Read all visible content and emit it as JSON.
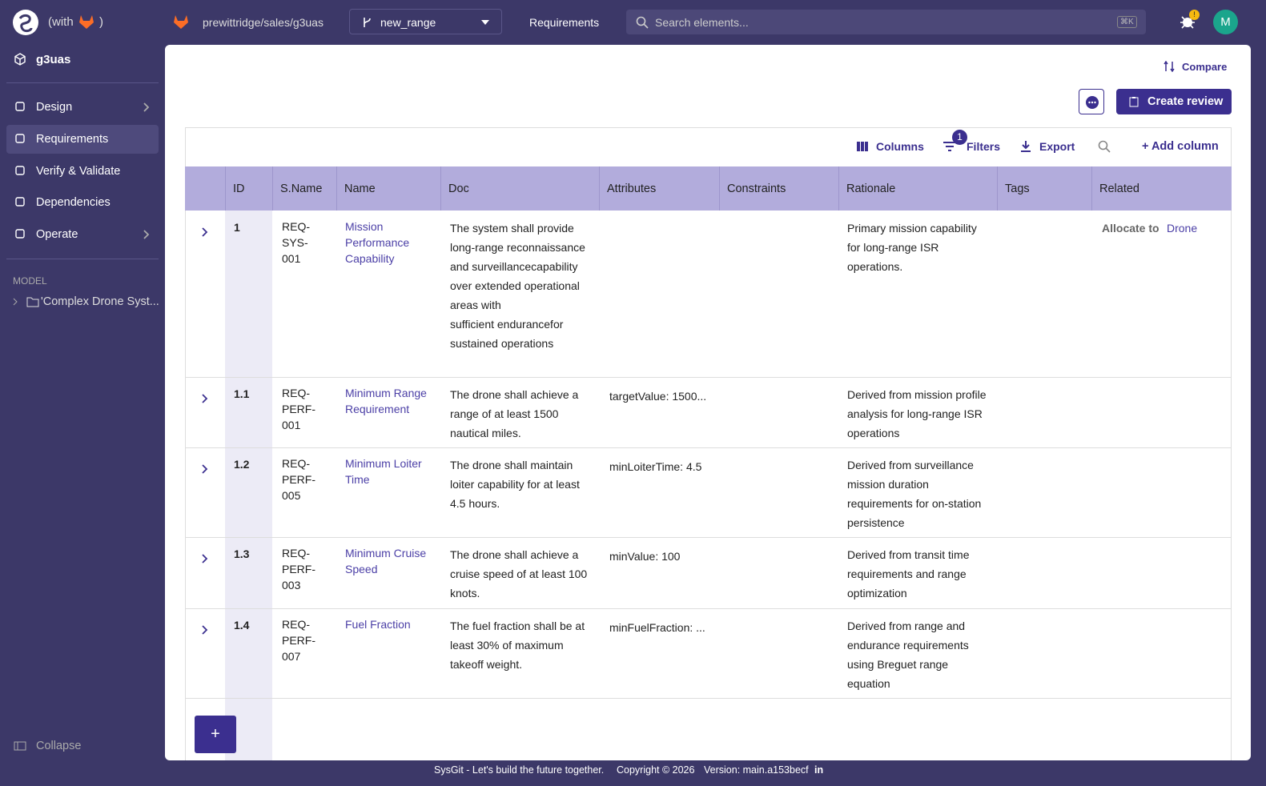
{
  "header": {
    "with_open": "(with",
    "with_close": ")",
    "repo": "prewittridge/sales/g3uas",
    "branch": "new_range",
    "page": "Requirements",
    "search_placeholder": "Search elements...",
    "shortcut": "⌘K",
    "badge": "!",
    "avatar": "M"
  },
  "sidebar": {
    "project": "g3uas",
    "nav": [
      "Design",
      "Requirements",
      "Verify & Validate",
      "Dependencies",
      "Operate"
    ],
    "model_heading": "MODEL",
    "model_item": "'Complex Drone Syst...",
    "collapse": "Collapse"
  },
  "toolbar": {
    "compare": "Compare",
    "create_review": "Create review",
    "columns": "Columns",
    "filter_count": "1",
    "filters": "Filters",
    "export": "Export",
    "add_column": "+ Add column",
    "add_row": "+"
  },
  "table": {
    "headers": [
      "ID",
      "S.Name",
      "Name",
      "Doc",
      "Attributes",
      "Constraints",
      "Rationale",
      "Tags",
      "Related"
    ],
    "rows": [
      {
        "id": "1",
        "sname": "REQ-\nSYS-\n001",
        "name": "Mission Performance Capability",
        "doc": "The system shall provide long-range reconnaissance and surveillancecapability over extended operational areas with\nsufficient endurancefor sustained operations",
        "rationale": "Primary mission capability for long-range ISR operations.",
        "related_label": "Allocate to",
        "related_target": "Drone"
      },
      {
        "id": "1.1",
        "sname": "REQ-\nPERF-\n001",
        "name": "Minimum Range Requirement",
        "doc": "The drone shall achieve a range of at least 1500 nautical miles.",
        "attributes": "targetValue: 1500...",
        "rationale": "Derived from mission profile analysis for long-range ISR operations"
      },
      {
        "id": "1.2",
        "sname": "REQ-\nPERF-\n005",
        "name": "Minimum Loiter Time",
        "doc": "The drone shall maintain loiter capability for at least 4.5 hours.",
        "attributes": "minLoiterTime: 4.5",
        "rationale": "Derived from surveillance mission duration requirements for on-station persistence"
      },
      {
        "id": "1.3",
        "sname": "REQ-\nPERF-\n003",
        "name": "Minimum Cruise Speed",
        "doc": "The drone shall achieve a cruise speed of at least 100 knots.",
        "attributes": "minValue: 100",
        "rationale": "Derived from transit time requirements and range optimization"
      },
      {
        "id": "1.4",
        "sname": "REQ-\nPERF-\n007",
        "name": "Fuel Fraction",
        "doc": "The fuel fraction shall be at least 30% of maximum takeoff weight.",
        "attributes": "minFuelFraction: ...",
        "rationale": "Derived from range and endurance requirements using Breguet range equation"
      }
    ]
  },
  "footer": {
    "tagline": "SysGit - Let's build the future together.",
    "copyright": "Copyright © 2026",
    "version": "Version: main.a153becf",
    "linkedin": "in"
  }
}
